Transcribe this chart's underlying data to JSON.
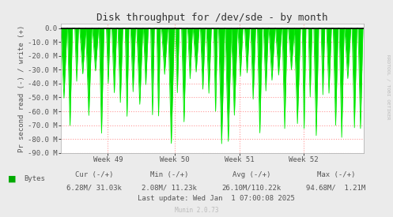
{
  "title": "Disk throughput for /dev/sde - by month",
  "ylabel": "Pr second read (-) / write (+)",
  "plot_bg_color": "#FFFFFF",
  "grid_color": "#FF9999",
  "ylim": [
    -90000000,
    3000000
  ],
  "yticks": [
    0,
    -10000000,
    -20000000,
    -30000000,
    -40000000,
    -50000000,
    -60000000,
    -70000000,
    -80000000,
    -90000000
  ],
  "ytick_labels": [
    "0.0",
    "-10.0 M",
    "-20.0 M",
    "-30.0 M",
    "-40.0 M",
    "-50.0 M",
    "-60.0 M",
    "-70.0 M",
    "-80.0 M",
    "-90.0 M"
  ],
  "week_labels": [
    "Week 49",
    "Week 50",
    "Week 51",
    "Week 52"
  ],
  "line_color": "#00EE00",
  "fill_color": "#00DD00",
  "zero_line_color": "#000000",
  "legend_label": "Bytes",
  "legend_color": "#00AA00",
  "cur_label": "Cur (-/+)",
  "cur_value": "6.28M/ 31.03k",
  "min_label": "Min (-/+)",
  "min_value": "2.08M/ 11.23k",
  "avg_label": "Avg (-/+)",
  "avg_value": "26.10M/110.22k",
  "max_label": "Max (-/+)",
  "max_value": "94.68M/  1.21M",
  "last_update": "Last update: Wed Jan  1 07:00:08 2025",
  "watermark": "Munin 2.0.73",
  "rrdtool_label": "RRDTOOL / TOBI OETIKER",
  "outer_bg": "#EBEBEB",
  "n_cycles": 48,
  "num_points": 500
}
